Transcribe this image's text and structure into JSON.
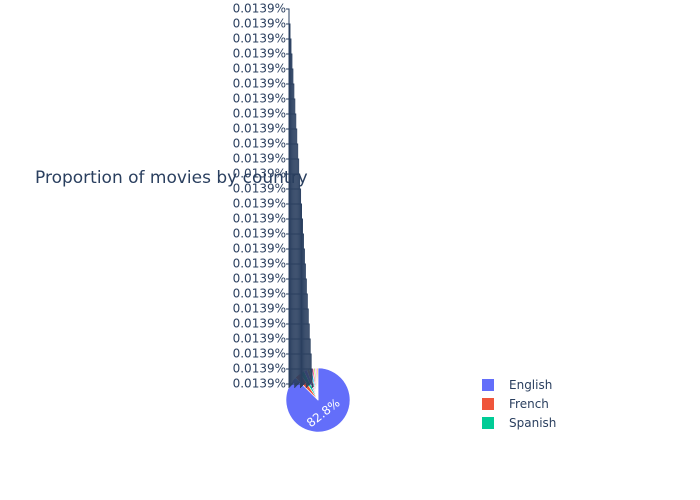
{
  "chart_data": {
    "type": "pie",
    "title": "Proportion of movies by country",
    "show_legend": true,
    "legend_position": "right",
    "slices": [
      {
        "label": "English",
        "value": 82.8,
        "text": "82.8%",
        "color": "#636efa"
      },
      {
        "label": "French",
        "value": 3.2,
        "text": "",
        "color": "#ef553b"
      },
      {
        "label": "Spanish",
        "value": 2.1,
        "text": "",
        "color": "#00cc96"
      },
      {
        "label": "",
        "value": 1.5,
        "text": "",
        "color": "#ab63fa"
      },
      {
        "label": "",
        "value": 1.2,
        "text": "",
        "color": "#ffa15a"
      },
      {
        "label": "",
        "value": 1.0,
        "text": "",
        "color": "#19d3f3"
      },
      {
        "label": "",
        "value": 0.9,
        "text": "",
        "color": "#ff6692"
      },
      {
        "label": "",
        "value": 0.8,
        "text": "",
        "color": "#b6e880"
      },
      {
        "label": "",
        "value": 0.7,
        "text": "",
        "color": "#ff97ff"
      },
      {
        "label": "",
        "value": 0.6,
        "text": "",
        "color": "#fecb52"
      }
    ],
    "small_slice_labels": [
      "0.0139%",
      "0.0139%",
      "0.0139%",
      "0.0139%",
      "0.0139%",
      "0.0139%",
      "0.0139%",
      "0.0139%",
      "0.0139%",
      "0.0139%",
      "0.0139%",
      "0.0139%",
      "0.0139%",
      "0.0139%",
      "0.0139%",
      "0.0139%",
      "0.0139%",
      "0.0139%",
      "0.0139%",
      "0.0139%",
      "0.0139%",
      "0.0139%",
      "0.0139%",
      "0.0139%",
      "0.0139%",
      "0.0139%"
    ]
  }
}
